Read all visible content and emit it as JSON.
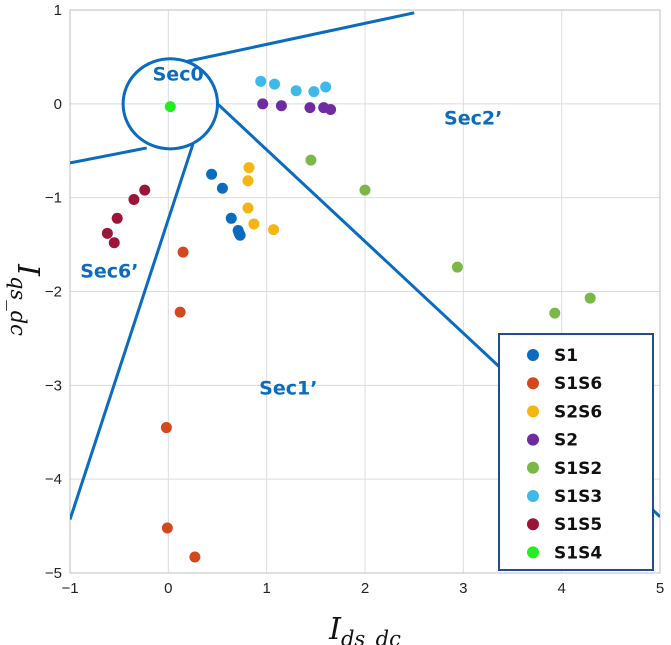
{
  "chart_data": {
    "type": "scatter",
    "xlim": [
      -1,
      5
    ],
    "ylim": [
      -5,
      1
    ],
    "xticks": [
      -1,
      0,
      1,
      2,
      3,
      4,
      5
    ],
    "yticks": [
      1,
      0,
      -1,
      -2,
      -3,
      -4,
      -5
    ],
    "grid": true,
    "legend_position": "bottom-right",
    "xlabel": {
      "main": "I",
      "sub": "ds_dc"
    },
    "ylabel": {
      "main": "I",
      "sub": "qs_dc"
    },
    "line_color": "#0a6bbf",
    "region_label_color": "#0a6bbf",
    "region_labels": [
      {
        "text": "Sec0",
        "x": 0.1,
        "y": 0.25
      },
      {
        "text": "Sec2’",
        "x": 3.1,
        "y": -0.22
      },
      {
        "text": "Sec6’",
        "x": -0.6,
        "y": -1.85
      },
      {
        "text": "Sec1’",
        "x": 1.22,
        "y": -3.1
      }
    ],
    "boundary_circle": {
      "cx": 0.02,
      "cy": 0.0,
      "r": 0.48
    },
    "boundary_lines": [
      {
        "from": [
          0.18,
          0.45
        ],
        "to": [
          2.5,
          0.97
        ]
      },
      {
        "from": [
          -0.22,
          -0.47
        ],
        "to": [
          -1.0,
          -0.63
        ]
      },
      {
        "from": [
          0.25,
          -0.43
        ],
        "to": [
          -1.0,
          -4.43
        ]
      },
      {
        "from": [
          0.5,
          0.0
        ],
        "to": [
          5.0,
          -4.4
        ]
      }
    ],
    "series": [
      {
        "name": "S1",
        "color": "#0a6bbf",
        "points": [
          [
            0.44,
            -0.75
          ],
          [
            0.55,
            -0.9
          ],
          [
            0.64,
            -1.22
          ],
          [
            0.71,
            -1.35
          ],
          [
            0.73,
            -1.4
          ],
          [
            0.72,
            -1.38
          ]
        ]
      },
      {
        "name": "S1S6",
        "color": "#d1491d",
        "points": [
          [
            0.15,
            -1.58
          ],
          [
            0.12,
            -2.22
          ],
          [
            -0.02,
            -3.45
          ],
          [
            -0.01,
            -4.52
          ],
          [
            0.27,
            -4.83
          ]
        ]
      },
      {
        "name": "S2S6",
        "color": "#f5b614",
        "points": [
          [
            0.82,
            -0.68
          ],
          [
            0.81,
            -0.82
          ],
          [
            0.81,
            -1.11
          ],
          [
            0.87,
            -1.28
          ],
          [
            1.07,
            -1.34
          ]
        ]
      },
      {
        "name": "S2",
        "color": "#6f2ca0",
        "points": [
          [
            0.96,
            0.0
          ],
          [
            1.15,
            -0.02
          ],
          [
            1.44,
            -0.04
          ],
          [
            1.58,
            -0.04
          ],
          [
            1.65,
            -0.06
          ]
        ]
      },
      {
        "name": "S1S2",
        "color": "#7bb848",
        "points": [
          [
            1.45,
            -0.6
          ],
          [
            2.0,
            -0.92
          ],
          [
            2.94,
            -1.74
          ],
          [
            3.93,
            -2.23
          ],
          [
            4.29,
            -2.07
          ]
        ]
      },
      {
        "name": "S1S3",
        "color": "#3fb9ea",
        "points": [
          [
            0.94,
            0.24
          ],
          [
            1.08,
            0.21
          ],
          [
            1.3,
            0.14
          ],
          [
            1.48,
            0.13
          ],
          [
            1.6,
            0.18
          ]
        ]
      },
      {
        "name": "S1S5",
        "color": "#9b1538",
        "points": [
          [
            -0.62,
            -1.38
          ],
          [
            -0.55,
            -1.48
          ],
          [
            -0.52,
            -1.22
          ],
          [
            -0.35,
            -1.02
          ],
          [
            -0.24,
            -0.92
          ]
        ]
      },
      {
        "name": "S1S4",
        "color": "#22ee22",
        "points": [
          [
            0.02,
            -0.03
          ]
        ]
      }
    ]
  }
}
